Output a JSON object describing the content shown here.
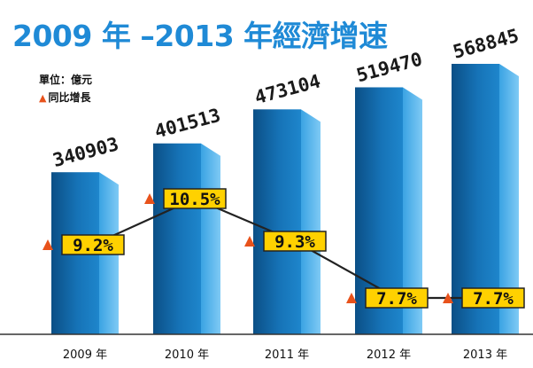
{
  "chart_data": {
    "type": "bar",
    "title": "2009 年 –2013 年經濟增速",
    "unit_label": "單位：億元",
    "legend_label": "同比增長",
    "categories": [
      "2009 年",
      "2010 年",
      "2011 年",
      "2012 年",
      "2013 年"
    ],
    "values": [
      340903,
      401513,
      473104,
      519470,
      568845
    ],
    "value_labels": [
      "340903",
      "401513",
      "473104",
      "519470",
      "568845"
    ],
    "growth_series": {
      "name": "同比增長",
      "values": [
        9.2,
        10.5,
        9.3,
        7.7,
        7.7
      ],
      "labels": [
        "9.2%",
        "10.5%",
        "9.3%",
        "7.7%",
        "7.7%"
      ]
    },
    "colors": {
      "title": "#1f8ad6",
      "bar_dark": "#0e5f9c",
      "bar_light": "#5db8ee",
      "marker": "#e8521b",
      "label_box": "#ffd100",
      "line": "#222222"
    }
  }
}
